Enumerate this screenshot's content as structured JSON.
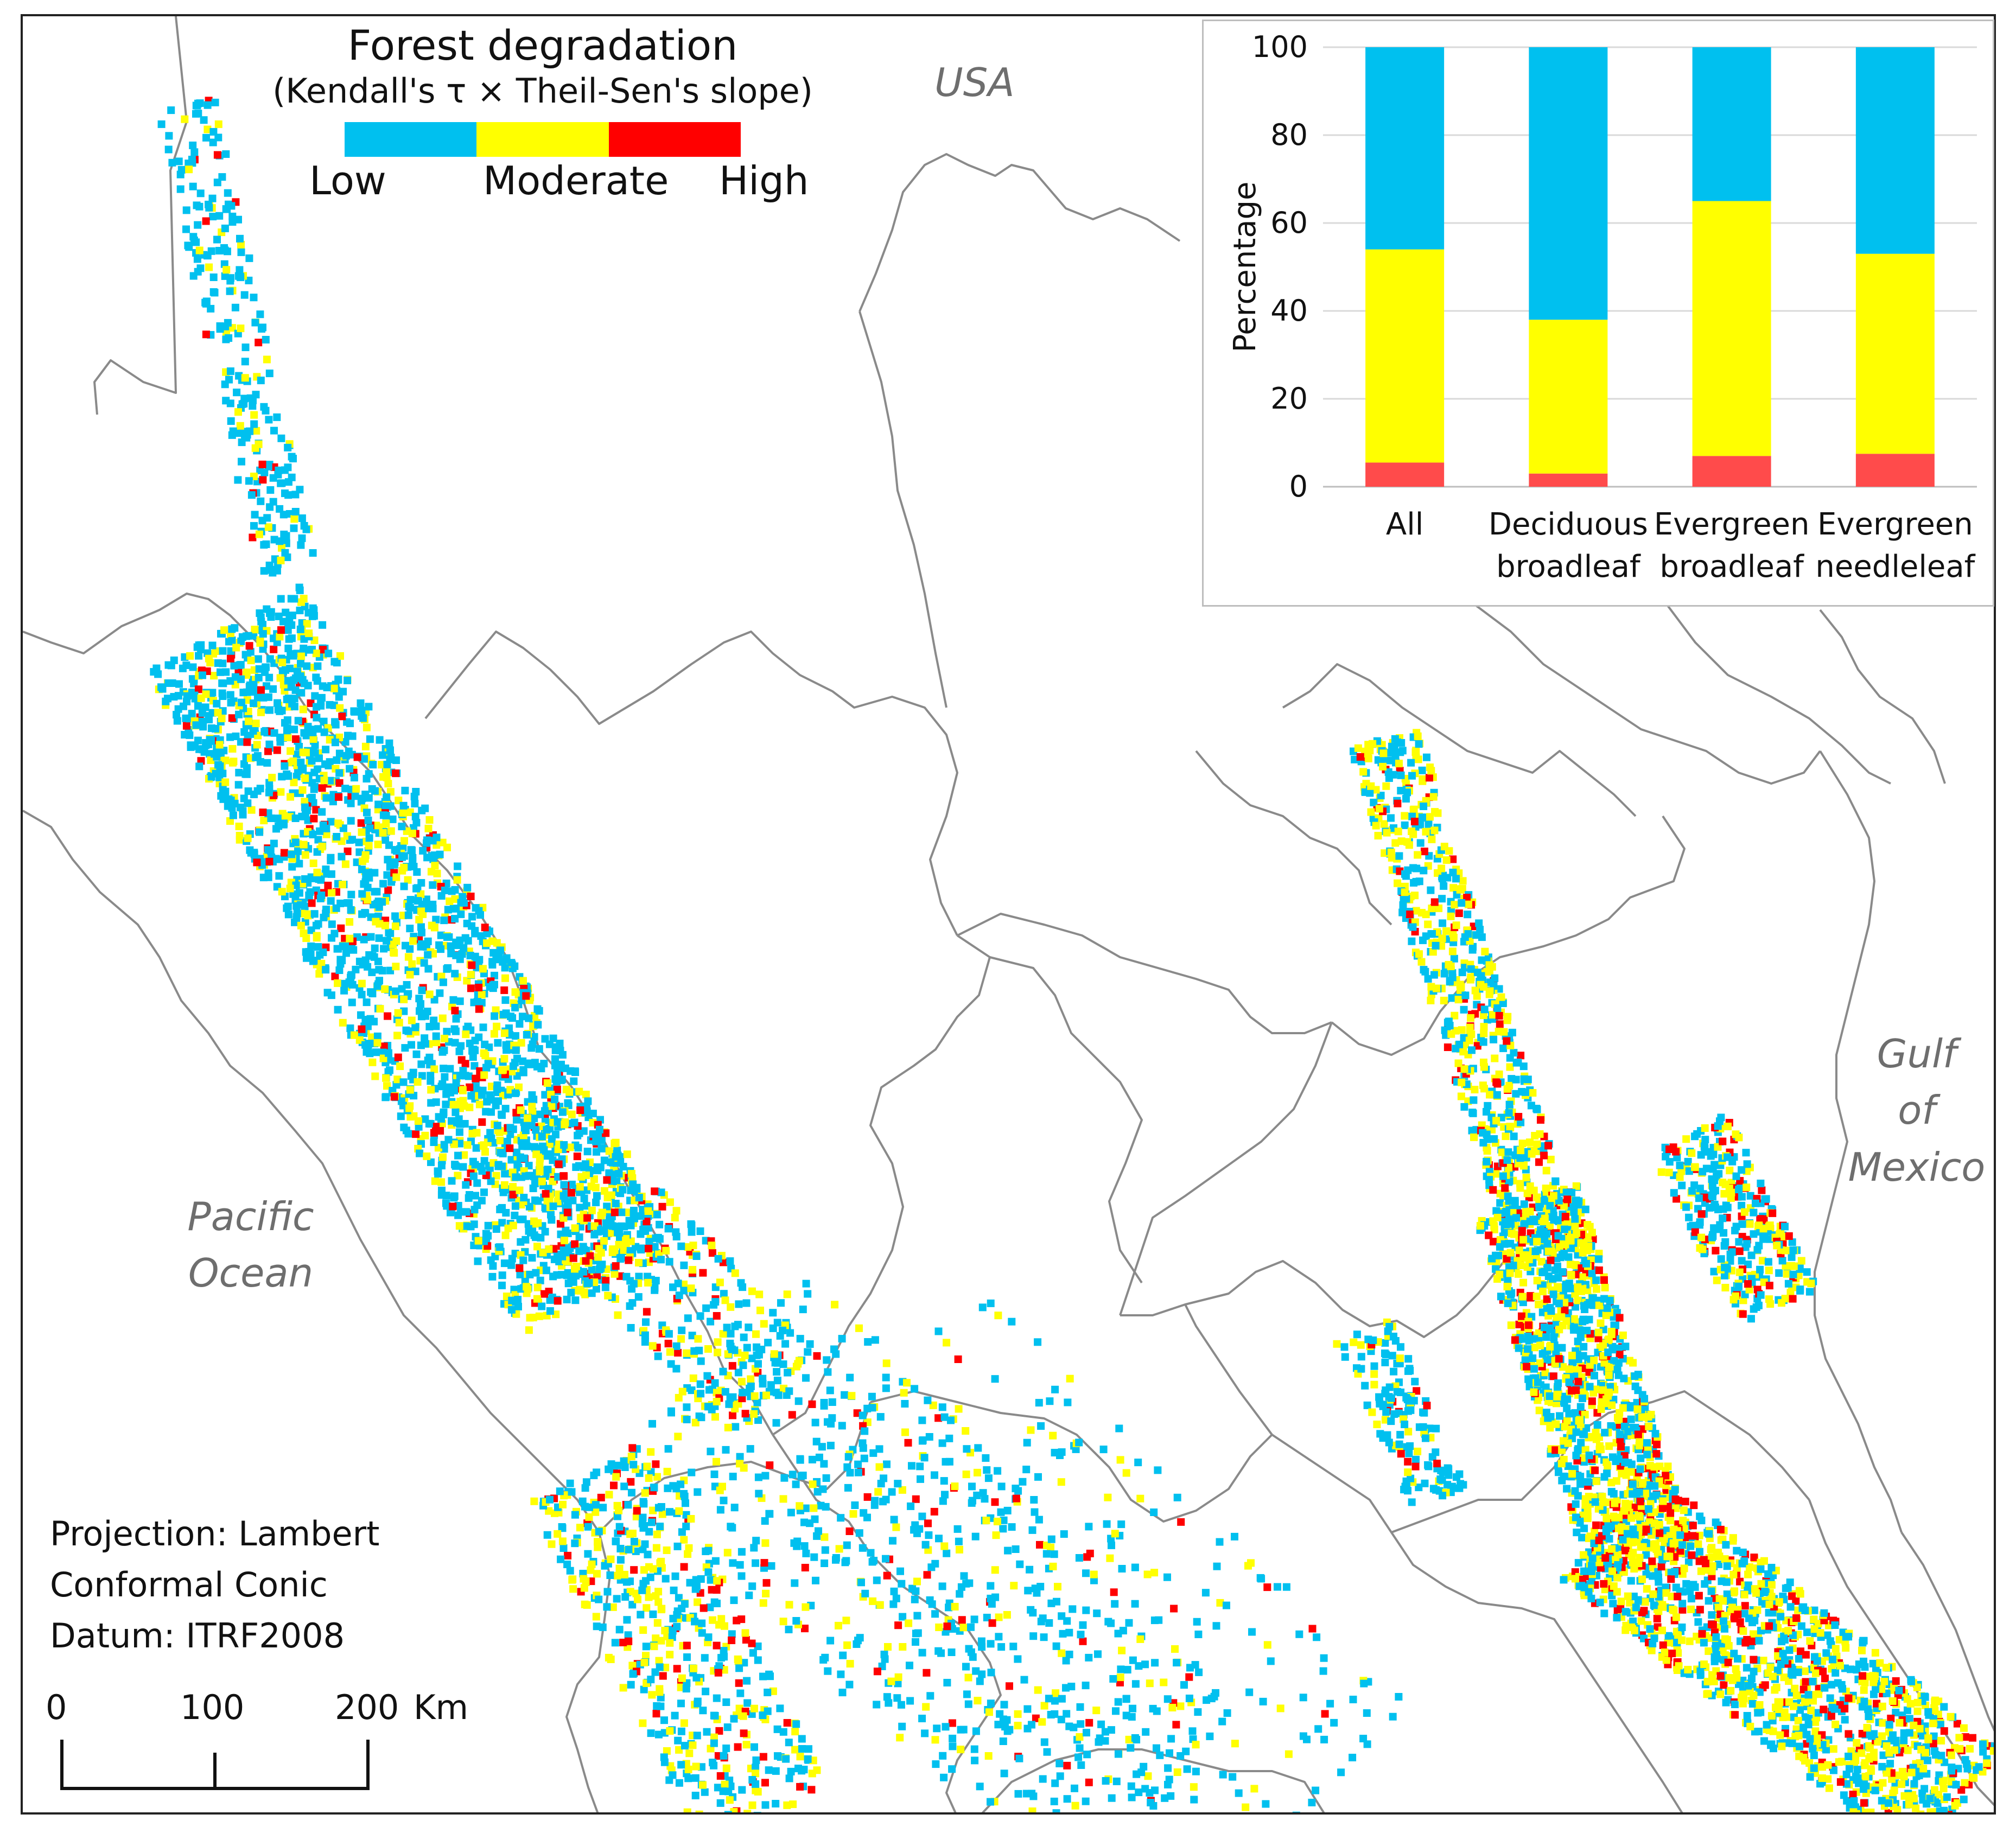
{
  "legend": {
    "title": "Forest degradation",
    "subtitle": "(Kendall's τ × Theil-Sen's slope)",
    "classes": [
      {
        "label": "Low",
        "color": "#00c0ef"
      },
      {
        "label": "Moderate",
        "color": "#ffff00"
      },
      {
        "label": "High",
        "color": "#ff0000"
      }
    ]
  },
  "map_labels": {
    "usa": "USA",
    "pacific_line1": "Pacific",
    "pacific_line2": "Ocean",
    "gulf_line1": "Gulf",
    "gulf_line2": "of",
    "gulf_line3": "Mexico"
  },
  "map_info": {
    "projection_line1": "Projection: Lambert",
    "projection_line2": "Conformal Conic",
    "datum": "Datum: ITRF2008"
  },
  "scale": {
    "labels": [
      "0",
      "100",
      "200"
    ],
    "unit": "Km"
  },
  "chart_data": {
    "type": "bar",
    "stacked": true,
    "categories": [
      [
        "All"
      ],
      [
        "Deciduous",
        "broadleaf"
      ],
      [
        "Evergreen",
        "broadleaf"
      ],
      [
        "Evergreen",
        "needleleaf"
      ]
    ],
    "series": [
      {
        "name": "High",
        "color": "#ff4b4b",
        "values": [
          5.5,
          3,
          7,
          7.5
        ]
      },
      {
        "name": "Moderate",
        "color": "#ffff00",
        "values": [
          48.5,
          35,
          58,
          45.5
        ]
      },
      {
        "name": "Low",
        "color": "#00c0ef",
        "values": [
          46,
          62,
          35,
          47
        ]
      }
    ],
    "ylabel": "Percentage",
    "xlabel": "",
    "ylim": [
      0,
      100
    ],
    "yticks": [
      0,
      20,
      40,
      60,
      80,
      100
    ],
    "grid": true
  }
}
